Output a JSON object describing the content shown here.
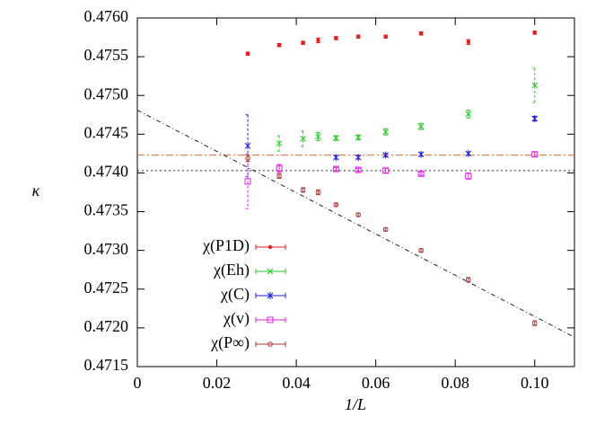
{
  "chart_data": {
    "type": "errorbar-scatter",
    "xlabel": "1/L",
    "ylabel": "κ",
    "xlim": [
      0,
      0.11
    ],
    "ylim": [
      0.4715,
      0.476
    ],
    "xticks": [
      0,
      0.02,
      0.04,
      0.06,
      0.08,
      {
        "value": 0.1,
        "label": "0.10"
      }
    ],
    "yticks": [
      0.4715,
      {
        "value": 0.472,
        "label": "0.4720"
      },
      0.4725,
      {
        "value": 0.473,
        "label": "0.4730"
      },
      0.4735,
      {
        "value": 0.474,
        "label": "0.4740"
      },
      0.4745,
      {
        "value": 0.475,
        "label": "0.4750"
      },
      0.4755,
      {
        "value": 0.476,
        "label": "0.4760"
      }
    ],
    "legend": "lower-left",
    "series": [
      {
        "name": "χ(P1D)",
        "color": "#e41a1c",
        "marker": "dot",
        "x": [
          0.0278,
          0.0357,
          0.0417,
          0.0455,
          0.05,
          0.0556,
          0.0625,
          0.0714,
          0.0833,
          0.1
        ],
        "values": [
          0.47554,
          0.47565,
          0.47568,
          0.47571,
          0.47574,
          0.47576,
          0.47576,
          0.4758,
          0.47569,
          0.47581
        ],
        "errors": [
          2e-05,
          2e-05,
          2e-05,
          3e-05,
          2e-05,
          2e-05,
          2e-05,
          2e-05,
          3e-05,
          2e-05
        ]
      },
      {
        "name": "χ(Eh)",
        "color": "#22cc22",
        "marker": "cross",
        "x": [
          0.0357,
          0.0417,
          0.0455,
          0.05,
          0.0556,
          0.0625,
          0.0714,
          0.0833,
          0.1
        ],
        "values": [
          0.47438,
          0.47444,
          0.47447,
          0.47445,
          0.47446,
          0.47453,
          0.4746,
          0.47476,
          0.47513
        ],
        "errors": [
          0.0001,
          0.0001,
          5e-05,
          3e-05,
          3e-05,
          4e-05,
          4e-05,
          5e-05,
          0.00022
        ]
      },
      {
        "name": "χ(C)",
        "color": "#2222dd",
        "marker": "star",
        "x": [
          0.0278,
          0.05,
          0.0556,
          0.0625,
          0.0714,
          0.0833,
          0.1
        ],
        "values": [
          0.47435,
          0.4742,
          0.4742,
          0.47423,
          0.47424,
          0.47425,
          0.4747
        ],
        "errors": [
          0.0004,
          2e-05,
          2e-05,
          2e-05,
          2e-05,
          2e-05,
          3e-05
        ]
      },
      {
        "name": "χ(v)",
        "color": "#dd22dd",
        "marker": "square",
        "x": [
          0.0278,
          0.0357,
          0.05,
          0.0556,
          0.0625,
          0.0714,
          0.0833,
          0.1
        ],
        "values": [
          0.47389,
          0.47406,
          0.47405,
          0.47404,
          0.47403,
          0.47399,
          0.47396,
          0.47424
        ],
        "errors": [
          0.00035,
          5e-05,
          2e-05,
          2e-05,
          3e-05,
          2e-05,
          4e-05,
          3e-05
        ]
      },
      {
        "name": "χ(P∞)",
        "color": "#b03a3a",
        "marker": "circle",
        "x": [
          0.0278,
          0.0357,
          0.0417,
          0.0455,
          0.05,
          0.0556,
          0.0625,
          0.0714,
          0.0833,
          0.1
        ],
        "values": [
          0.47419,
          0.47396,
          0.47378,
          0.47375,
          0.47359,
          0.47346,
          0.47327,
          0.473,
          0.47262,
          0.47206
        ],
        "errors": [
          4e-05,
          3e-05,
          3e-05,
          3e-05,
          2e-05,
          2e-05,
          2e-05,
          2e-05,
          3e-05,
          3e-05
        ]
      }
    ],
    "hlines": [
      {
        "value": 0.47423,
        "color": "#e86a3a",
        "dash": "8 3 2 3"
      },
      {
        "value": 0.47403,
        "color": "#333333",
        "dash": "2 3"
      }
    ],
    "fit": {
      "x": [
        0,
        0.11
      ],
      "values": [
        0.47481,
        0.47188
      ],
      "color": "#222222",
      "dash": "5 3 1 3"
    }
  }
}
